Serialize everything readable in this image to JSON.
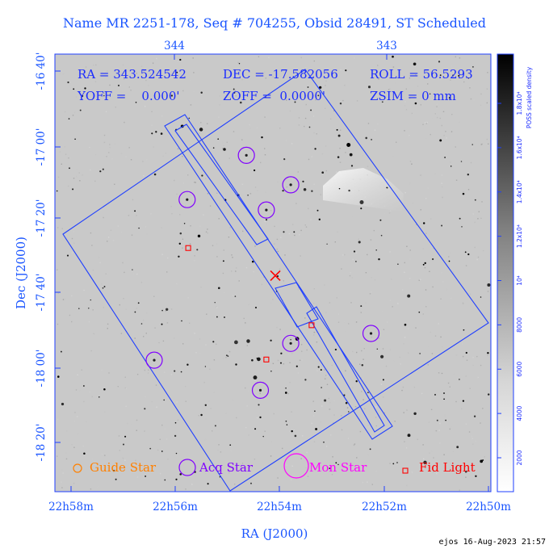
{
  "chart_data": {
    "type": "scatter",
    "title": "Name MR 2251-178, Seq # 704255, Obsid 28491, ST Scheduled",
    "xlabel": "RA (J2000)",
    "ylabel": "Dec (J2000)",
    "x_ticks_bottom": [
      "22h58m",
      "22h56m",
      "22h54m",
      "22h52m",
      "22h50m"
    ],
    "x_ticks_top": [
      "344",
      "343"
    ],
    "y_ticks": [
      "-16 40'",
      "-17 00'",
      "-17 20'",
      "-17 40'",
      "-18 00'",
      "-18 20'"
    ],
    "y_tick_values": [
      -16.6667,
      -17.0,
      -17.3333,
      -17.6667,
      -18.0,
      -18.3333
    ],
    "info": {
      "ra": "RA = 343.524542",
      "dec": "DEC = -17.582056",
      "roll": "ROLL = 56.5293",
      "yoff": "YOFF =    0.000'",
      "zoff": "ZOFF =  0.0000'",
      "zsim": "ZSIM = 0 mm"
    },
    "colorbar": {
      "label": "POSS scaled density",
      "ticks": [
        "2000",
        "4000",
        "6000",
        "8000",
        "10⁴",
        "1.2x10⁴",
        "1.4x10⁴",
        "1.6x10⁴",
        "1.8x10⁴"
      ]
    },
    "legend": {
      "placement": "bottom",
      "entries": [
        {
          "name": "Guide Star",
          "color": "#ff8000"
        },
        {
          "name": "Acq Star",
          "color": "#8000ff"
        },
        {
          "name": "Mon Star",
          "color": "#ff00ff"
        },
        {
          "name": "Fid Light",
          "color": "#ff0000"
        }
      ]
    },
    "acq_stars": [
      {
        "ra": 343.94,
        "dec": -17.238
      },
      {
        "ra": 343.661,
        "dec": -17.038
      },
      {
        "ra": 343.452,
        "dec": -17.171
      },
      {
        "ra": 343.567,
        "dec": -17.285
      },
      {
        "ra": 343.452,
        "dec": -17.888
      },
      {
        "ra": 344.095,
        "dec": -17.964
      },
      {
        "ra": 343.595,
        "dec": -18.1
      },
      {
        "ra": 343.074,
        "dec": -17.843
      }
    ],
    "fid_lights": [
      {
        "ra": 343.935,
        "dec": -17.457
      },
      {
        "ra": 343.354,
        "dec": -17.806
      },
      {
        "ra": 343.567,
        "dec": -17.961
      }
    ],
    "target": {
      "ra": 343.524542,
      "dec": -17.582056
    },
    "footer": "ejos 16-Aug-2023 21:57"
  }
}
